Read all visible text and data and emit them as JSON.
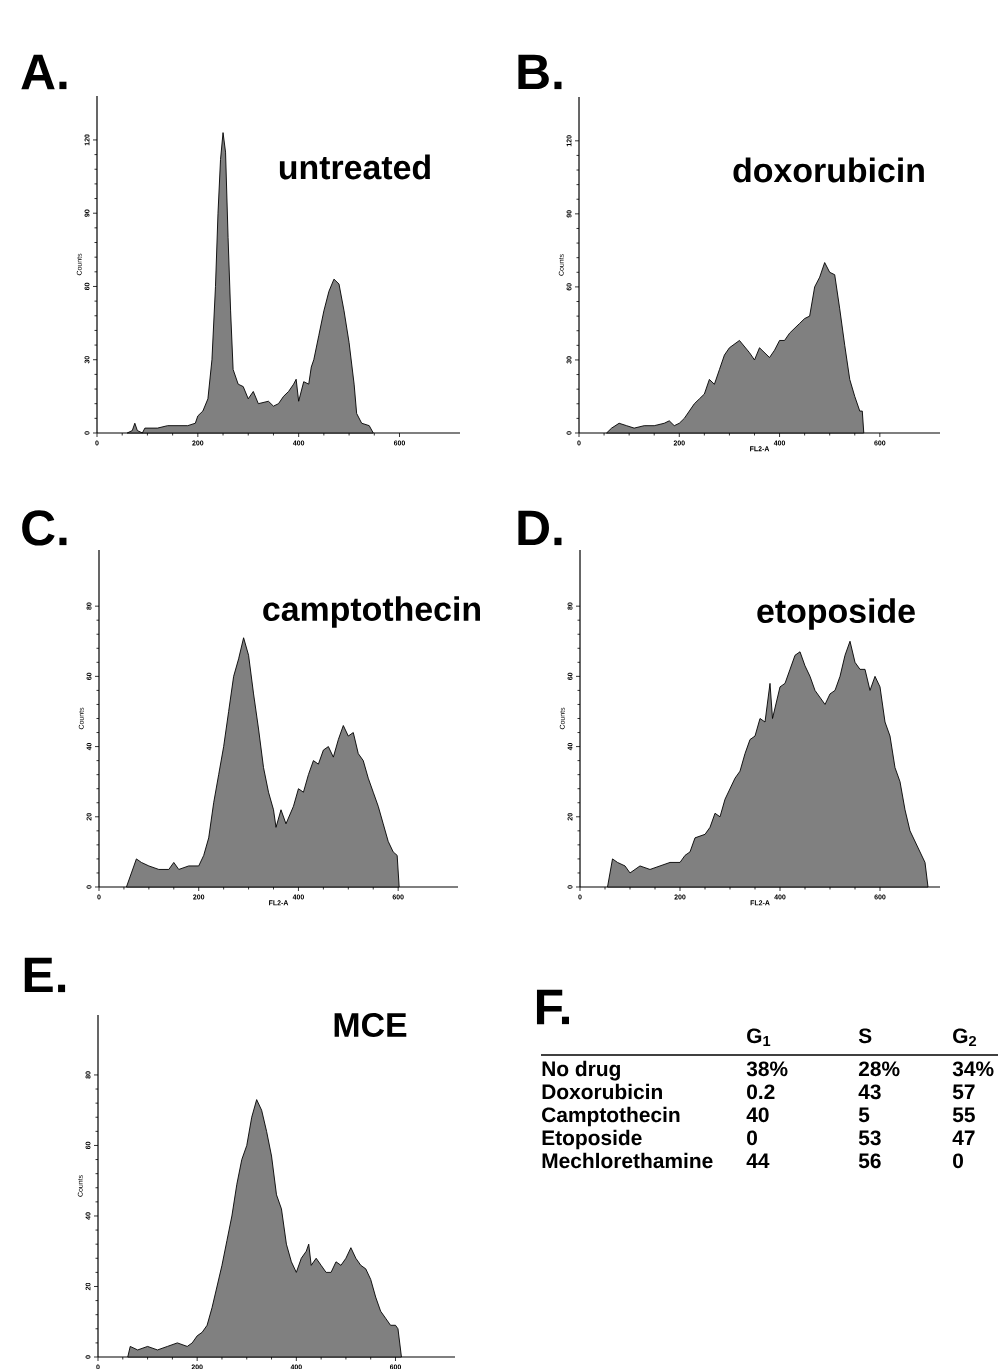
{
  "chart_data": [
    {
      "type": "area",
      "title": "A.",
      "annotations": [
        "untreated"
      ],
      "ylabel": "Counts",
      "color": "#808080",
      "xlim": [
        0,
        720
      ],
      "ylim": [
        0,
        138
      ],
      "xticks": [
        0,
        200,
        400,
        600
      ],
      "yticks": [
        0,
        30,
        60,
        90,
        120
      ],
      "x": [
        60,
        70,
        75,
        80,
        90,
        95,
        120,
        140,
        160,
        180,
        195,
        200,
        210,
        220,
        228,
        235,
        240,
        245,
        250,
        255,
        260,
        265,
        270,
        280,
        290,
        300,
        310,
        320,
        340,
        350,
        360,
        370,
        380,
        390,
        395,
        400,
        410,
        420,
        425,
        430,
        440,
        450,
        460,
        470,
        480,
        490,
        500,
        510,
        515,
        525,
        540,
        548
      ],
      "values": [
        0,
        1,
        4,
        1,
        0,
        2,
        2,
        3,
        3,
        3,
        4,
        7,
        9,
        14,
        30,
        60,
        90,
        112,
        123,
        115,
        80,
        50,
        26,
        20,
        19,
        14,
        17,
        12,
        13,
        11,
        12,
        15,
        17,
        20,
        22,
        13,
        21,
        20,
        27,
        30,
        40,
        50,
        58,
        63,
        61,
        50,
        37,
        20,
        8,
        4,
        3,
        0
      ]
    },
    {
      "type": "area",
      "title": "B.",
      "annotations": [
        "doxorubicin"
      ],
      "ylabel": "Counts",
      "xlabel": "FL2-A",
      "color": "#808080",
      "xlim": [
        0,
        720
      ],
      "ylim": [
        0,
        138
      ],
      "xticks": [
        0,
        200,
        400,
        600
      ],
      "yticks": [
        0,
        30,
        60,
        90,
        120
      ],
      "x": [
        55,
        65,
        80,
        95,
        110,
        130,
        150,
        170,
        180,
        190,
        200,
        210,
        220,
        230,
        240,
        250,
        260,
        270,
        280,
        290,
        300,
        320,
        340,
        350,
        360,
        380,
        390,
        400,
        410,
        420,
        440,
        450,
        460,
        470,
        480,
        490,
        500,
        510,
        520,
        530,
        540,
        550,
        560,
        565,
        568
      ],
      "values": [
        0,
        2,
        4,
        3,
        2,
        3,
        3,
        4,
        5,
        3,
        4,
        6,
        9,
        12,
        14,
        16,
        22,
        20,
        26,
        32,
        35,
        38,
        33,
        30,
        35,
        31,
        34,
        38,
        38,
        41,
        45,
        47,
        48,
        60,
        64,
        70,
        66,
        65,
        51,
        36,
        22,
        15,
        9,
        9,
        0
      ]
    },
    {
      "type": "area",
      "title": "C.",
      "annotations": [
        "camptothecin"
      ],
      "ylabel": "Counts",
      "xlabel": "FL2-A",
      "color": "#808080",
      "xlim": [
        0,
        720
      ],
      "ylim": [
        0,
        96
      ],
      "xticks": [
        0,
        200,
        400,
        600
      ],
      "yticks": [
        0,
        20,
        40,
        60,
        80
      ],
      "x": [
        55,
        65,
        75,
        85,
        100,
        120,
        140,
        150,
        160,
        180,
        200,
        210,
        220,
        230,
        240,
        250,
        260,
        270,
        280,
        290,
        300,
        310,
        320,
        330,
        340,
        350,
        355,
        365,
        375,
        390,
        400,
        410,
        420,
        430,
        440,
        450,
        460,
        470,
        480,
        490,
        500,
        510,
        520,
        530,
        540,
        550,
        560,
        570,
        580,
        590,
        598,
        602
      ],
      "values": [
        0,
        4,
        8,
        7,
        6,
        5,
        5,
        7,
        5,
        6,
        6,
        9,
        14,
        24,
        32,
        40,
        50,
        60,
        65,
        71,
        66,
        55,
        45,
        34,
        27,
        22,
        17,
        22,
        18,
        23,
        28,
        27,
        32,
        36,
        35,
        39,
        40,
        37,
        42,
        46,
        43,
        44,
        38,
        36,
        31,
        27,
        23,
        18,
        13,
        10,
        9,
        0
      ]
    },
    {
      "type": "area",
      "title": "D.",
      "annotations": [
        "etoposide"
      ],
      "ylabel": "Counts",
      "xlabel": "FL2-A",
      "color": "#808080",
      "xlim": [
        0,
        720
      ],
      "ylim": [
        0,
        96
      ],
      "xticks": [
        0,
        200,
        400,
        600
      ],
      "yticks": [
        0,
        20,
        40,
        60,
        80
      ],
      "x": [
        55,
        65,
        75,
        90,
        100,
        120,
        140,
        160,
        180,
        200,
        210,
        220,
        230,
        250,
        260,
        270,
        280,
        290,
        300,
        310,
        320,
        330,
        340,
        350,
        360,
        370,
        380,
        385,
        400,
        410,
        420,
        430,
        440,
        450,
        460,
        470,
        480,
        490,
        500,
        510,
        520,
        530,
        540,
        550,
        560,
        570,
        580,
        590,
        600,
        610,
        620,
        630,
        640,
        650,
        660,
        670,
        680,
        690,
        696
      ],
      "values": [
        0,
        8,
        7,
        6,
        4,
        6,
        5,
        6,
        7,
        7,
        9,
        10,
        14,
        15,
        17,
        21,
        20,
        25,
        28,
        31,
        33,
        38,
        42,
        43,
        48,
        47,
        58,
        48,
        57,
        58,
        62,
        66,
        67,
        63,
        60,
        56,
        54,
        52,
        55,
        56,
        60,
        66,
        70,
        64,
        62,
        62,
        56,
        60,
        57,
        47,
        43,
        34,
        30,
        22,
        16,
        13,
        10,
        7,
        0
      ]
    },
    {
      "type": "area",
      "title": "E.",
      "annotations": [
        "MCE"
      ],
      "ylabel": "Counts",
      "color": "#808080",
      "xlim": [
        0,
        720
      ],
      "ylim": [
        0,
        97
      ],
      "xticks": [
        0,
        200,
        400,
        600
      ],
      "yticks": [
        0,
        20,
        40,
        60,
        80
      ],
      "x": [
        60,
        65,
        80,
        100,
        120,
        140,
        160,
        180,
        190,
        200,
        210,
        220,
        230,
        240,
        250,
        260,
        270,
        280,
        290,
        300,
        310,
        320,
        330,
        340,
        350,
        360,
        370,
        380,
        390,
        400,
        410,
        420,
        425,
        430,
        440,
        450,
        460,
        470,
        480,
        490,
        500,
        510,
        520,
        530,
        540,
        550,
        560,
        570,
        580,
        590,
        600,
        605,
        612
      ],
      "values": [
        0,
        3,
        2,
        3,
        2,
        3,
        4,
        3,
        4,
        6,
        7,
        9,
        14,
        20,
        26,
        33,
        40,
        49,
        56,
        60,
        68,
        73,
        70,
        64,
        57,
        46,
        42,
        32,
        27,
        24,
        28,
        30,
        32,
        26,
        28,
        26,
        24,
        24,
        27,
        26,
        28,
        31,
        28,
        26,
        25,
        22,
        17,
        13,
        11,
        9,
        9,
        8,
        0
      ]
    },
    {
      "type": "other",
      "title": "F.",
      "categories": [
        "G$_{1}$",
        "S",
        "G$_{2}$"
      ],
      "y_categories": [
        "No drug",
        "Doxorubicin",
        "Camptothecin",
        "Etoposide",
        "Mechlorethamine"
      ],
      "cell_labels": [
        [
          "38%",
          "28%",
          "34%"
        ],
        [
          "0.2",
          "43",
          "57"
        ],
        [
          "40",
          "5",
          "55"
        ],
        [
          "0",
          "53",
          "47"
        ],
        [
          "44",
          "56",
          "0"
        ]
      ]
    }
  ]
}
